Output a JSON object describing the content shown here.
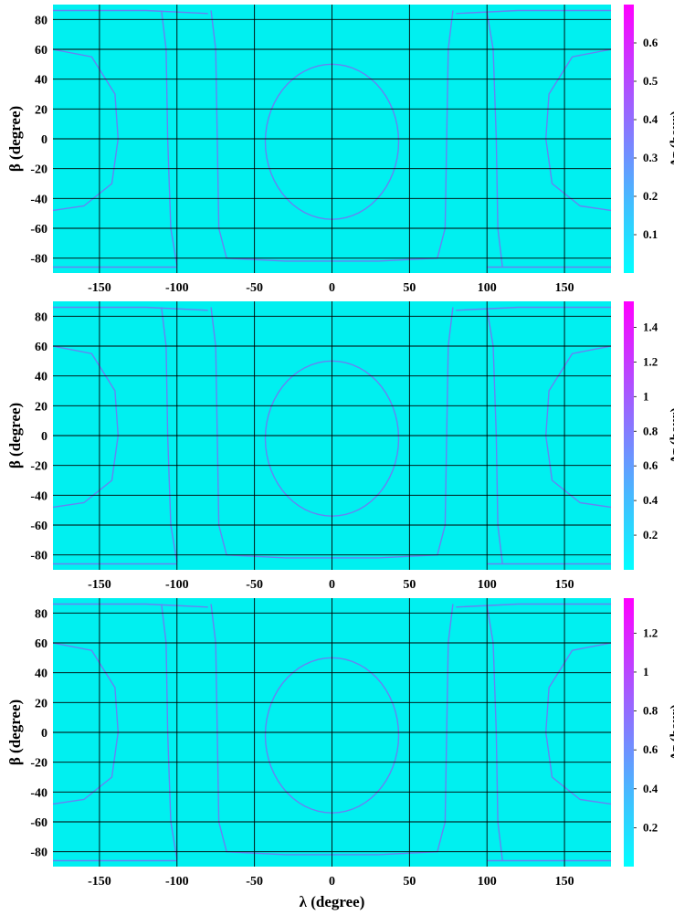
{
  "figure": {
    "x_axis": {
      "label": "λ (degree)",
      "range": [
        -180,
        180
      ],
      "ticks": [
        -150,
        -100,
        -50,
        0,
        50,
        100,
        150
      ],
      "tick_labels": [
        "-150",
        "-100",
        "-50",
        "0",
        "50",
        "100",
        "150"
      ]
    },
    "y_axis": {
      "label": "β (degree)",
      "range": [
        -90,
        90
      ],
      "ticks": [
        80,
        60,
        40,
        20,
        0,
        -20,
        -40,
        -60,
        -80
      ],
      "tick_labels": [
        "80",
        "60",
        "40",
        "20",
        "0",
        "-20",
        "-40",
        "-60",
        "-80"
      ]
    },
    "colors": {
      "background": "#00f0f0",
      "low": "#00ffff",
      "high": "#ff00ff",
      "curve": "#8a5cf5",
      "grid": "#000000"
    }
  },
  "chart_data": [
    {
      "type": "heatmap",
      "title": "",
      "xlabel": "λ (degree)",
      "ylabel": "β (degree)",
      "xlim": [
        -180,
        180
      ],
      "ylim": [
        -90,
        90
      ],
      "grid": true,
      "colorbar": {
        "label": "Δτ (hour)",
        "range": [
          0,
          0.7
        ],
        "ticks": [
          0.1,
          0.2,
          0.3,
          0.4,
          0.5,
          0.6
        ],
        "tick_labels": [
          "0.1",
          "0.2",
          "0.3",
          "0.4",
          "0.5",
          "0.6"
        ]
      }
    },
    {
      "type": "heatmap",
      "title": "",
      "xlabel": "λ (degree)",
      "ylabel": "β (degree)",
      "xlim": [
        -180,
        180
      ],
      "ylim": [
        -90,
        90
      ],
      "grid": true,
      "colorbar": {
        "label": "Δτ (hour)",
        "range": [
          0,
          1.55
        ],
        "ticks": [
          0.2,
          0.4,
          0.6,
          0.8,
          1.0,
          1.2,
          1.4
        ],
        "tick_labels": [
          "0.2",
          "0.4",
          "0.6",
          "0.8",
          "1",
          "1.2",
          "1.4"
        ]
      }
    },
    {
      "type": "heatmap",
      "title": "",
      "xlabel": "λ (degree)",
      "ylabel": "β (degree)",
      "xlim": [
        -180,
        180
      ],
      "ylim": [
        -90,
        90
      ],
      "grid": true,
      "colorbar": {
        "label": "Δτ (hour)",
        "range": [
          0,
          1.38
        ],
        "ticks": [
          0.2,
          0.4,
          0.6,
          0.8,
          1.0,
          1.2
        ],
        "tick_labels": [
          "0.2",
          "0.4",
          "0.6",
          "0.8",
          "1",
          "1.2"
        ]
      }
    }
  ]
}
